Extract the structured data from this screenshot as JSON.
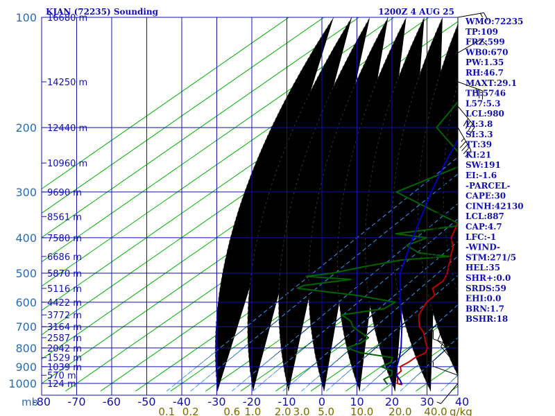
{
  "header": {
    "station": "KJAN (72235) Sounding",
    "time": "1200Z  4 AUG 25"
  },
  "colors": {
    "grid": "#1010b0",
    "pressure_label": "#2a6db0",
    "temp_label": "#1010b0",
    "mixing_label": "#7a6a00",
    "temperature": "#c00000",
    "dewpoint": "#006400",
    "parcel": "#0000c0",
    "isotherm": "#00b000",
    "dry_adiabat": "#333333",
    "mixing_ratio": "#3399ff",
    "barb": "#000000"
  },
  "chart_data": {
    "type": "line",
    "title": "KJAN (72235) Sounding",
    "xlabel": "",
    "ylabel": "",
    "pressure_unit": "mb",
    "mixing_unit": "g/kg",
    "pressure_levels": [
      100,
      200,
      300,
      400,
      500,
      600,
      700,
      800,
      900,
      1000
    ],
    "pressure_ticks": [
      "100",
      "200",
      "300",
      "400",
      "500",
      "600",
      "700",
      "800",
      "900",
      "1000"
    ],
    "temp_ticks": [
      "-80",
      "-70",
      "-60",
      "-50",
      "-40",
      "-30",
      "-20",
      "-10",
      "0",
      "10",
      "20",
      "30",
      "40"
    ],
    "temp_values": [
      -80,
      -70,
      -60,
      -50,
      -40,
      -30,
      -20,
      -10,
      0,
      10,
      20,
      30,
      40
    ],
    "mixing_ticks": [
      "0.1",
      "0.2",
      "0.6",
      "1.0",
      "2.0",
      "3.0",
      "5.0",
      "10.0",
      "20.0",
      "40.0"
    ],
    "mixing_values": [
      0.1,
      0.2,
      0.6,
      1.0,
      2.0,
      3.0,
      5.0,
      10.0,
      20.0,
      40.0
    ],
    "xlim": [
      -80,
      40
    ],
    "ylim": [
      1050,
      100
    ],
    "heights": [
      {
        "label": "16680 m",
        "p": 100
      },
      {
        "label": "14250 m",
        "p": 150
      },
      {
        "label": "12440 m",
        "p": 200
      },
      {
        "label": "10960 m",
        "p": 250
      },
      {
        "label": "9690 m",
        "p": 300
      },
      {
        "label": "8561 m",
        "p": 350
      },
      {
        "label": "7580 m",
        "p": 400
      },
      {
        "label": "6686 m",
        "p": 450
      },
      {
        "label": "5870 m",
        "p": 500
      },
      {
        "label": "5116 m",
        "p": 550
      },
      {
        "label": "4422 m",
        "p": 600
      },
      {
        "label": "3772 m",
        "p": 650
      },
      {
        "label": "3164 m",
        "p": 700
      },
      {
        "label": "2587 m",
        "p": 750
      },
      {
        "label": "2042 m",
        "p": 800
      },
      {
        "label": "1529 m",
        "p": 850
      },
      {
        "label": "1039 m",
        "p": 900
      },
      {
        "label": "570 m",
        "p": 950
      },
      {
        "label": "124 m",
        "p": 1000
      }
    ],
    "series": [
      {
        "key": "temperature",
        "p": [
          1008,
          1000,
          975,
          950,
          925,
          900,
          875,
          850,
          825,
          800,
          775,
          750,
          725,
          700,
          675,
          650,
          625,
          600,
          575,
          550,
          525,
          500,
          475,
          460,
          450,
          425,
          400,
          350,
          300,
          250,
          200,
          175,
          150,
          125,
          110,
          100
        ],
        "t": [
          23.4,
          21.5,
          20.0,
          18.0,
          17.5,
          15.5,
          16.0,
          16.0,
          17.0,
          15.5,
          13.0,
          10.5,
          8.0,
          4.5,
          2.0,
          -0.5,
          -2.0,
          -3.5,
          -4.0,
          -7.5,
          -7.5,
          -9.5,
          -12.5,
          -14.0,
          -15.5,
          -18.5,
          -23.0,
          -29.0,
          -36.5,
          -45.0,
          -55.5,
          -62.0,
          -69.5,
          -72.0,
          -76.0,
          -76.0
        ]
      },
      {
        "key": "dewpoint",
        "p": [
          1008,
          1000,
          975,
          950,
          925,
          900,
          875,
          850,
          825,
          800,
          775,
          750,
          725,
          700,
          675,
          650,
          625,
          600,
          575,
          550,
          540,
          520,
          510,
          500,
          480,
          460,
          450,
          440,
          420,
          400,
          390,
          370,
          300,
          250,
          200,
          150,
          125
        ],
        "t": [
          19.2,
          18.5,
          16.0,
          16.5,
          15.0,
          10.0,
          11.0,
          9.5,
          -1.5,
          -7.5,
          -5.5,
          -5.5,
          -10.0,
          -14.5,
          -17.5,
          -22.5,
          -13.0,
          -12.5,
          -26.0,
          -46.0,
          -45.5,
          -34.5,
          -48.5,
          -42.5,
          -36.0,
          -28.0,
          -16.0,
          -26.0,
          -32.5,
          -30.0,
          -40.5,
          -25.0,
          -57.5,
          -49.0,
          -72.5,
          -80.5,
          -88.0
        ]
      },
      {
        "key": "parcel",
        "p": [
          1008,
          980,
          950,
          900,
          850,
          800,
          700,
          600,
          500,
          400,
          300,
          250,
          200,
          150
        ],
        "t": [
          23.4,
          21.0,
          18.0,
          14.5,
          11.5,
          8.0,
          -0.5,
          -11.0,
          -23.0,
          -34.0,
          -47.5,
          -55.5,
          -64.5,
          -77.0
        ]
      }
    ]
  },
  "indices": [
    "WMO:72235",
    "TP:109",
    "FRZ:599",
    "WB0:670",
    "PW:1.35",
    "RH:46.7",
    "MAXT:29.1",
    "TH:5746",
    "L57:5.3",
    "LCL:980",
    "LI:3.8",
    "SI:3.3",
    "TT:39",
    "KI:21",
    "SW:191",
    "EI:-1.6",
    "-PARCEL-",
    "CAPE:30",
    "CINH:42130",
    "LCL:887",
    "CAP:4.7",
    "LFC:-1",
    "-WIND-",
    "STM:271/5",
    "HEL:35",
    "SHR+:0.0",
    "SRDS:59",
    "EHI:0.0",
    "BRN:1.7",
    "BSHR:18"
  ],
  "wind": [
    {
      "p": 100,
      "dir": 80,
      "spd": 15
    },
    {
      "p": 125,
      "dir": 60,
      "spd": 10
    },
    {
      "p": 150,
      "dir": 110,
      "spd": 25
    },
    {
      "p": 175,
      "dir": 140,
      "spd": 40
    },
    {
      "p": 200,
      "dir": 150,
      "spd": 45
    },
    {
      "p": 250,
      "dir": 200,
      "spd": 30
    },
    {
      "p": 300,
      "dir": 210,
      "spd": 30
    },
    {
      "p": 350,
      "dir": 240,
      "spd": 25
    },
    {
      "p": 400,
      "dir": 250,
      "spd": 20
    },
    {
      "p": 450,
      "dir": 260,
      "spd": 20
    },
    {
      "p": 500,
      "dir": 300,
      "spd": 15
    },
    {
      "p": 550,
      "dir": 320,
      "spd": 15
    },
    {
      "p": 600,
      "dir": 330,
      "spd": 10
    },
    {
      "p": 700,
      "dir": 300,
      "spd": 10
    },
    {
      "p": 800,
      "dir": 290,
      "spd": 10
    },
    {
      "p": 850,
      "dir": 310,
      "spd": 10
    },
    {
      "p": 900,
      "dir": 320,
      "spd": 5
    },
    {
      "p": 950,
      "dir": 290,
      "spd": 5
    },
    {
      "p": 1000,
      "dir": 220,
      "spd": 5
    }
  ]
}
